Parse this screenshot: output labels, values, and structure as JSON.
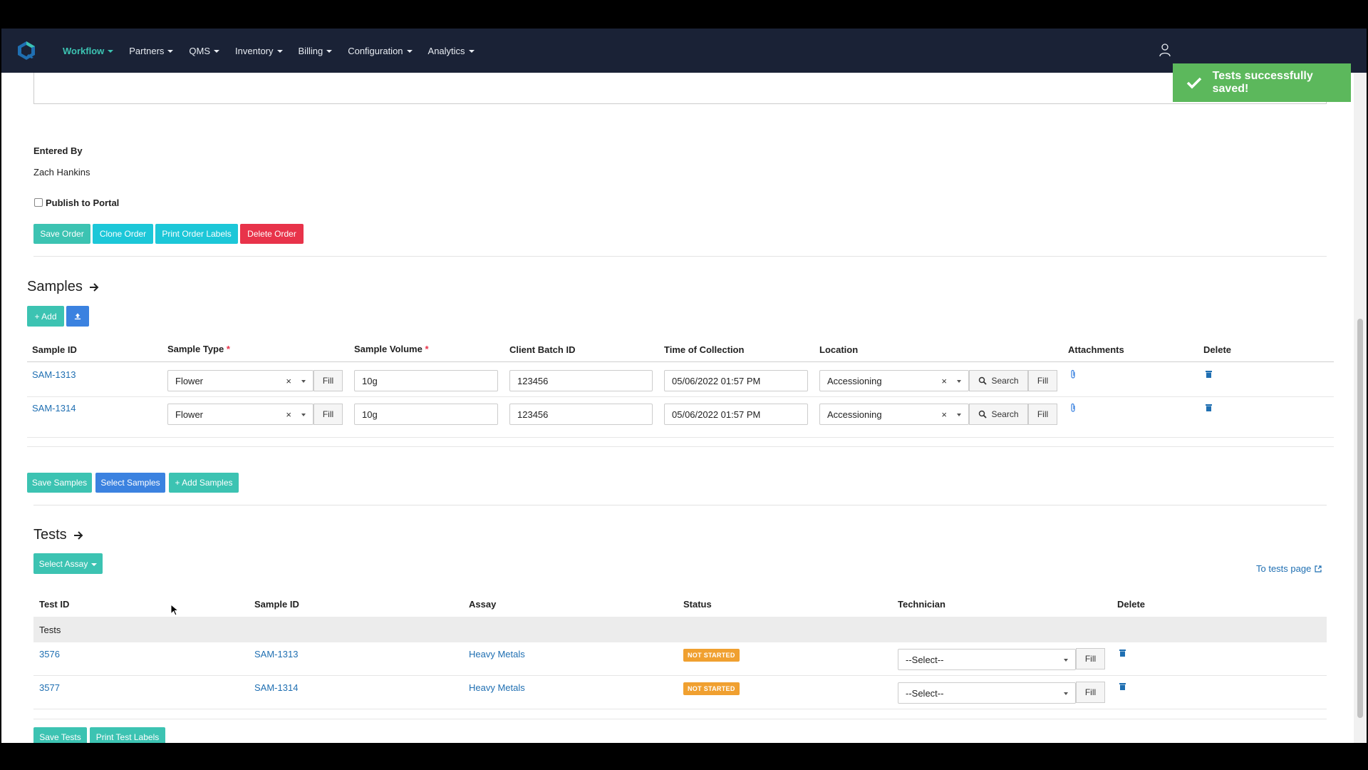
{
  "navbar": {
    "items": [
      {
        "label": "Workflow",
        "active": true
      },
      {
        "label": "Partners"
      },
      {
        "label": "QMS"
      },
      {
        "label": "Inventory"
      },
      {
        "label": "Billing"
      },
      {
        "label": "Configuration"
      },
      {
        "label": "Analytics"
      }
    ]
  },
  "toast": {
    "message": "Tests successfully saved!",
    "color": "#5cb85c"
  },
  "order": {
    "entered_by_label": "Entered By",
    "entered_by_value": "Zach Hankins",
    "publish_label": "Publish to Portal",
    "buttons": {
      "save": "Save Order",
      "clone": "Clone Order",
      "print": "Print Order Labels",
      "delete": "Delete Order"
    }
  },
  "samples": {
    "title": "Samples",
    "add_label": "+ Add",
    "columns": {
      "sample_id": "Sample ID",
      "sample_type": "Sample Type",
      "sample_volume": "Sample Volume",
      "client_batch_id": "Client Batch ID",
      "time_of_collection": "Time of Collection",
      "location": "Location",
      "attachments": "Attachments",
      "delete": "Delete"
    },
    "required_mark": "*",
    "rows": [
      {
        "id": "SAM-1313",
        "type": "Flower",
        "volume": "10g",
        "batch": "123456",
        "time": "05/06/2022 01:57 PM",
        "location": "Accessioning"
      },
      {
        "id": "SAM-1314",
        "type": "Flower",
        "volume": "10g",
        "batch": "123456",
        "time": "05/06/2022 01:57 PM",
        "location": "Accessioning"
      }
    ],
    "fill_label": "Fill",
    "search_label": "Search",
    "clear_mark": "×",
    "buttons": {
      "save": "Save Samples",
      "select": "Select Samples",
      "add": "+ Add Samples"
    }
  },
  "tests": {
    "title": "Tests",
    "select_assay_label": "Select Assay",
    "to_tests_page": "To tests page",
    "columns": {
      "test_id": "Test ID",
      "sample_id": "Sample ID",
      "assay": "Assay",
      "status": "Status",
      "technician": "Technician",
      "delete": "Delete"
    },
    "group_label": "Tests",
    "rows": [
      {
        "test_id": "3576",
        "sample_id": "SAM-1313",
        "assay": "Heavy Metals",
        "status": "NOT STARTED",
        "technician": "--Select--"
      },
      {
        "test_id": "3577",
        "sample_id": "SAM-1314",
        "assay": "Heavy Metals",
        "status": "NOT STARTED",
        "technician": "--Select--"
      }
    ],
    "fill_label": "Fill",
    "buttons": {
      "save": "Save Tests",
      "print": "Print Test Labels"
    }
  },
  "colors": {
    "navbar": "#1a2236",
    "teal": "#3cc3b2",
    "cyan": "#1cc7d8",
    "red": "#e8334a",
    "blue": "#3b82e0",
    "link": "#1f6fb2",
    "status_not_started": "#f0a030"
  }
}
